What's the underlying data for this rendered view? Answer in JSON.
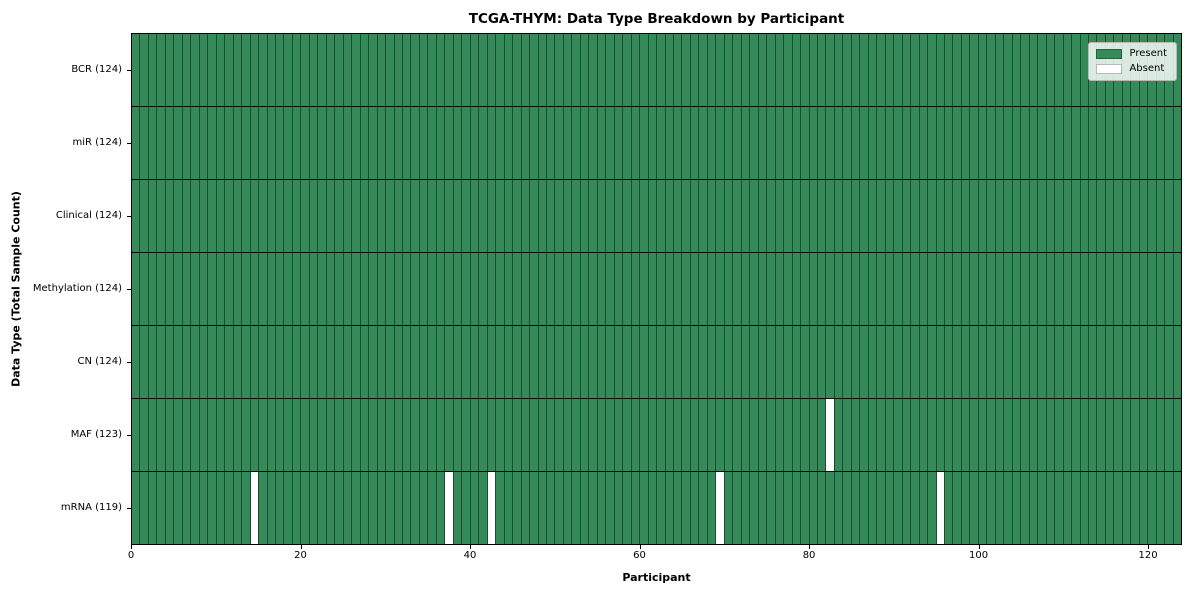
{
  "chart_data": {
    "type": "heatmap",
    "title": "TCGA-THYM: Data Type Breakdown by Participant",
    "xlabel": "Participant",
    "ylabel": "Data Type (Total Sample Count)",
    "x_range": [
      0,
      124
    ],
    "n_participants": 124,
    "x_ticks": [
      "0",
      "20",
      "40",
      "60",
      "80",
      "100",
      "120"
    ],
    "x_tick_values": [
      0,
      20,
      40,
      60,
      80,
      100,
      120
    ],
    "grid": "cell-edges",
    "legend_position": "upper-right",
    "rows": [
      {
        "label": "BCR (124)",
        "data_type": "BCR",
        "present_count": 124,
        "absent_participants": []
      },
      {
        "label": "miR (124)",
        "data_type": "miR",
        "present_count": 124,
        "absent_participants": []
      },
      {
        "label": "Clinical (124)",
        "data_type": "Clinical",
        "present_count": 124,
        "absent_participants": []
      },
      {
        "label": "Methylation (124)",
        "data_type": "Methylation",
        "present_count": 124,
        "absent_participants": []
      },
      {
        "label": "CN (124)",
        "data_type": "CN",
        "present_count": 124,
        "absent_participants": []
      },
      {
        "label": "MAF (123)",
        "data_type": "MAF",
        "present_count": 123,
        "absent_participants": [
          82
        ]
      },
      {
        "label": "mRNA (119)",
        "data_type": "mRNA",
        "present_count": 119,
        "absent_participants": [
          14,
          37,
          42,
          69,
          95
        ]
      }
    ],
    "legend": [
      {
        "label": "Present",
        "color": "#348a59"
      },
      {
        "label": "Absent",
        "color": "#ffffff"
      }
    ],
    "colors": {
      "present": "#348a59",
      "absent": "#ffffff",
      "cell_edge": "#1d4a31",
      "row_divider": "#0a0a0a",
      "spine": "#000000",
      "legend_border": "#b9b9b9"
    }
  }
}
